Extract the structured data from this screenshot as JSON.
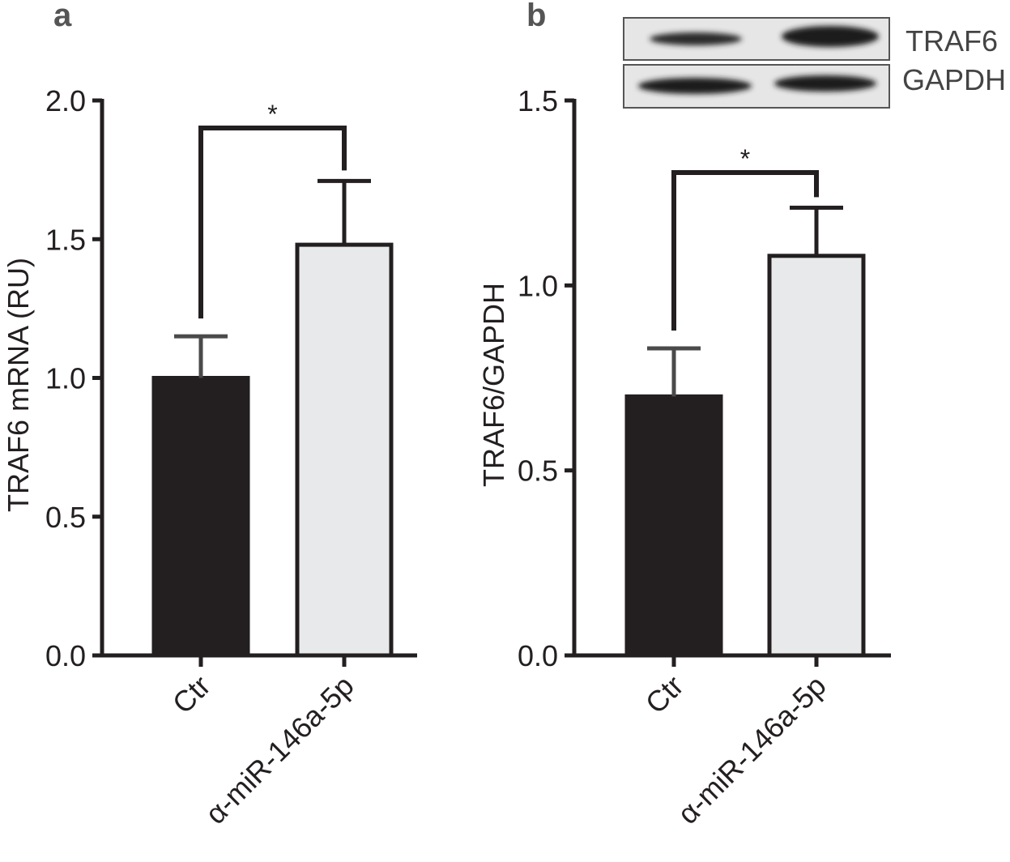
{
  "chart_data": [
    {
      "type": "bar",
      "panel_label": "a",
      "categories": [
        "Ctr",
        "α-miR-146a-5p"
      ],
      "values": [
        1.0,
        1.48
      ],
      "error": [
        0.15,
        0.23
      ],
      "colors": [
        "#231f20",
        "#e8e9ea"
      ],
      "ylabel": "TRAF6 mRNA (RU)",
      "ylim": [
        0,
        2.0
      ],
      "yticks": [
        "0.0",
        "0.5",
        "1.0",
        "1.5",
        "2.0"
      ],
      "significance": "*",
      "grid": false
    },
    {
      "type": "bar",
      "panel_label": "b",
      "categories": [
        "Ctr",
        "α-miR-146a-5p"
      ],
      "values": [
        0.7,
        1.08
      ],
      "error": [
        0.13,
        0.13
      ],
      "colors": [
        "#231f20",
        "#e8e9ea"
      ],
      "ylabel": "TRAF6/GAPDH",
      "ylim": [
        0,
        1.5
      ],
      "yticks": [
        "0.0",
        "0.5",
        "1.0",
        "1.5"
      ],
      "significance": "*",
      "grid": false,
      "blot_labels": [
        "TRAF6",
        "GAPDH"
      ]
    }
  ]
}
